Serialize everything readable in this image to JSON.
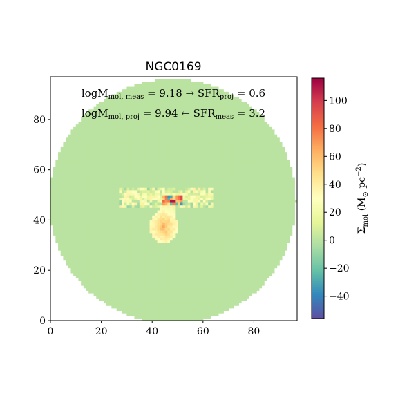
{
  "chart_data": {
    "type": "heatmap",
    "title": "NGC0169",
    "xlim": [
      0,
      97
    ],
    "ylim": [
      0,
      97
    ],
    "x_ticks": [
      0,
      20,
      40,
      60,
      80
    ],
    "y_ticks": [
      0,
      20,
      40,
      60,
      80
    ],
    "x_tick_labels": [
      "0",
      "20",
      "40",
      "60",
      "80"
    ],
    "y_tick_labels": [
      "0",
      "20",
      "40",
      "60",
      "80"
    ],
    "colormap": "Spectral_r",
    "color_range": [
      -56,
      116
    ],
    "background_value": 0,
    "disk": {
      "center_x": 48,
      "center_y": 47.5,
      "radius": 48.5
    },
    "emission_regions": [
      {
        "x": [
          27,
          64
        ],
        "y": [
          45,
          53
        ],
        "typical_value": 20
      },
      {
        "x": [
          41,
          49
        ],
        "y": [
          31,
          42
        ],
        "typical_value": 40,
        "peak_value": 55
      },
      {
        "x": [
          44,
          52
        ],
        "y": [
          46,
          50
        ],
        "typical_value": 60,
        "peak_value": 110,
        "min_value": -40
      }
    ],
    "colorbar": {
      "label_main": "Σ",
      "label_sub": "mol",
      "label_unit": " (M",
      "label_unit_sub": "⊙",
      "label_unit_rest": " pc",
      "label_unit_exp": "−2",
      "label_close": ")",
      "ticks": [
        -40,
        -20,
        0,
        20,
        40,
        60,
        80,
        100
      ],
      "tick_labels": [
        "−40",
        "−20",
        "0",
        "20",
        "40",
        "60",
        "80",
        "100"
      ]
    },
    "annotations": [
      {
        "pre": "logM",
        "sub1": "mol, meas",
        "mid": " = 9.18 → SFR",
        "sub2": "proj",
        "post": " = 0.6"
      },
      {
        "pre": "logM",
        "sub1": "mol, proj",
        "mid": " = 9.94 ← SFR",
        "sub2": "meas",
        "post": " = 3.2"
      }
    ]
  }
}
